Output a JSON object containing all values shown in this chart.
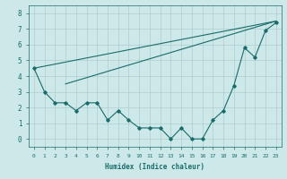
{
  "bg_color": "#cce8e8",
  "grid_color": "#b0cccc",
  "line_color": "#1a6b6b",
  "line1": {
    "x": [
      0,
      23
    ],
    "y": [
      4.5,
      7.5
    ]
  },
  "line2": {
    "x": [
      3,
      23
    ],
    "y": [
      3.5,
      7.5
    ]
  },
  "line3": {
    "x": [
      0,
      1,
      2,
      3,
      4,
      5,
      6,
      7,
      8,
      9,
      10,
      11,
      12,
      13,
      14,
      15,
      16,
      17,
      18,
      19,
      20,
      21,
      22,
      23
    ],
    "y": [
      4.5,
      3.0,
      2.3,
      2.3,
      1.8,
      2.3,
      2.3,
      1.2,
      1.8,
      1.2,
      0.7,
      0.7,
      0.7,
      0.0,
      0.7,
      0.0,
      0.0,
      1.2,
      1.8,
      3.4,
      5.8,
      5.2,
      6.9,
      7.4
    ]
  },
  "xlabel": "Humidex (Indice chaleur)",
  "xlim": [
    -0.5,
    23.5
  ],
  "ylim": [
    -0.5,
    8.5
  ],
  "yticks": [
    0,
    1,
    2,
    3,
    4,
    5,
    6,
    7,
    8
  ],
  "xticks": [
    0,
    1,
    2,
    3,
    4,
    5,
    6,
    7,
    8,
    9,
    10,
    11,
    12,
    13,
    14,
    15,
    16,
    17,
    18,
    19,
    20,
    21,
    22,
    23
  ],
  "xtick_labels": [
    "0",
    "1",
    "2",
    "3",
    "4",
    "5",
    "6",
    "7",
    "8",
    "9",
    "10",
    "11",
    "12",
    "13",
    "14",
    "15",
    "16",
    "17",
    "18",
    "19",
    "20",
    "21",
    "22",
    "23"
  ]
}
